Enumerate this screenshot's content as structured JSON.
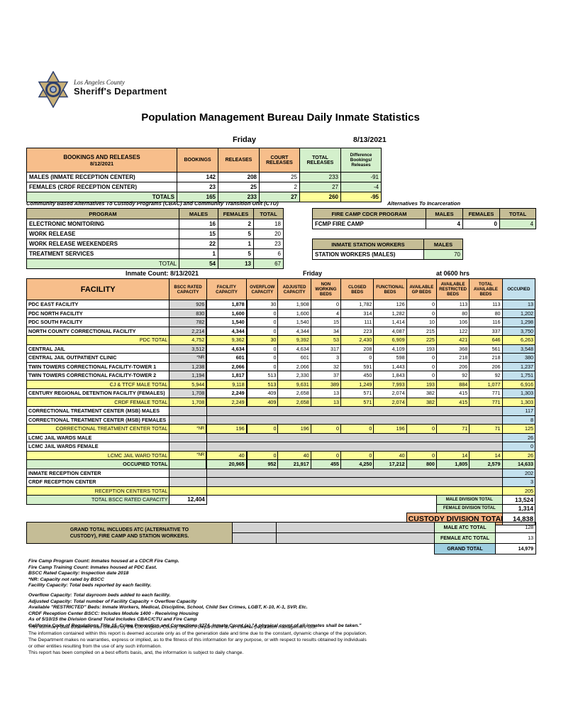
{
  "colors": {
    "header_orange": "#F7BE8B",
    "tan": "#C5BD96",
    "green": "#D4F0CC",
    "yellow": "#FFFF99",
    "occupied_blue": "#C3E0ED",
    "gray": "#D8D8D8",
    "grand_total_blue": "#9FCFE0",
    "custody_orange": "#F4B183"
  },
  "logo": {
    "county": "Los Angeles County",
    "department": "Sheriff's Department"
  },
  "header": {
    "title": "Population Management Bureau Daily Inmate Statistics",
    "day": "Friday",
    "date": "8/13/2021"
  },
  "bookings_table": {
    "title_line1": "BOOKINGS AND RELEASES",
    "title_line2": "8/12/2021",
    "columns": [
      "BOOKINGS",
      "RELEASES",
      "COURT RELEASES",
      "TOTAL RELEASES",
      "Difference Bookings/ Releases"
    ],
    "rows": [
      {
        "label": "MALES (INMATE RECEPTION CENTER)",
        "bookings": "142",
        "releases": "208",
        "court": "25",
        "total_releases": "233",
        "difference": "-91"
      },
      {
        "label": "FEMALES (CRDF RECEPTION CENTER)",
        "bookings": "23",
        "releases": "25",
        "court": "2",
        "total_releases": "27",
        "difference": "-4"
      }
    ],
    "totals": {
      "label": "TOTALS",
      "bookings": "165",
      "releases": "233",
      "court": "27",
      "total_releases": "260",
      "difference": "-95"
    }
  },
  "cbac_table": {
    "title": "Community Based Alternatives To Custody Programs (CBAC) and Community Transition Unit (CTU)",
    "columns": [
      "PROGRAM",
      "MALES",
      "FEMALES",
      "TOTAL"
    ],
    "rows": [
      {
        "label": "ELECTRONIC MONITORING",
        "males": "16",
        "females": "2",
        "total": "18"
      },
      {
        "label": "WORK RELEASE",
        "males": "15",
        "females": "5",
        "total": "20"
      },
      {
        "label": "WORK RELEASE WEEKENDERS",
        "males": "22",
        "females": "1",
        "total": "23"
      },
      {
        "label": "TREATMENT SERVICES",
        "males": "1",
        "females": "5",
        "total": "6"
      }
    ],
    "totals": {
      "label": "TOTAL",
      "males": "54",
      "females": "13",
      "total": "67"
    }
  },
  "ati": {
    "title": "Alternatives To Incarceration",
    "fire_camp": {
      "columns": [
        "FIRE CAMP CDCR PROGRAM",
        "MALES",
        "FEMALES",
        "TOTAL"
      ],
      "row": {
        "label": "FCMP FIRE CAMP",
        "males": "4",
        "females": "0",
        "total": "4"
      }
    },
    "station_workers": {
      "columns": [
        "INMATE STATION WORKERS",
        "MALES"
      ],
      "row": {
        "label": "STATION WORKERS (MALES)",
        "value": "70"
      }
    }
  },
  "facility_table": {
    "caption": "Inmate Count:  8/13/2021",
    "day": "Friday",
    "time": "at 0600 hrs",
    "columns": [
      "FACILITY",
      "BSCC RATED CAPACITY",
      "FACILITY CAPACITY",
      "OVERFLOW CAPACITY",
      "ADJUSTED CAPACITY",
      "NON WORKING BEDS",
      "CLOSED BEDS",
      "FUNCTIONAL BEDS",
      "AVAILABLE GP BEDS",
      "AVAILABLE RESTRICTED BEDS",
      "TOTAL AVAILABLE BEDS",
      "OCCUPIED"
    ],
    "rows": [
      {
        "style": "data",
        "label": "PDC EAST FACILITY",
        "bscc": "926",
        "cells": [
          "1,878",
          "30",
          "1,908",
          "0",
          "1,782",
          "126",
          "0",
          "113",
          "113"
        ],
        "occupied": "13"
      },
      {
        "style": "data",
        "label": "PDC NORTH FACILITY",
        "bscc": "830",
        "cells": [
          "1,600",
          "0",
          "1,600",
          "4",
          "314",
          "1,282",
          "0",
          "80",
          "80"
        ],
        "occupied": "1,202"
      },
      {
        "style": "data",
        "label": "PDC SOUTH FACILITY",
        "bscc": "782",
        "cells": [
          "1,540",
          "0",
          "1,540",
          "15",
          "111",
          "1,414",
          "10",
          "106",
          "116"
        ],
        "occupied": "1,298"
      },
      {
        "style": "data",
        "label": "NORTH COUNTY CORRECTIONAL FACILITY",
        "bscc": "2,214",
        "cells": [
          "4,344",
          "0",
          "4,344",
          "34",
          "223",
          "4,087",
          "215",
          "122",
          "337"
        ],
        "occupied": "3,750"
      },
      {
        "style": "total",
        "label": "PDC TOTAL",
        "bscc": "4,752",
        "cells": [
          "9,362",
          "30",
          "9,392",
          "53",
          "2,430",
          "6,909",
          "225",
          "421",
          "646"
        ],
        "occupied": "6,263"
      },
      {
        "style": "data",
        "label": "CENTRAL JAIL",
        "bscc": "3,512",
        "cells": [
          "4,634",
          "0",
          "4,634",
          "317",
          "208",
          "4,109",
          "193",
          "368",
          "561"
        ],
        "occupied": "3,548"
      },
      {
        "style": "data",
        "label": "CENTRAL JAIL OUTPATIENT CLINIC",
        "bscc": "*NR",
        "cells": [
          "601",
          "0",
          "601",
          "3",
          "0",
          "598",
          "0",
          "218",
          "218"
        ],
        "occupied": "380"
      },
      {
        "style": "data",
        "label": "TWIN TOWERS CORRECTIONAL FACILITY-TOWER 1",
        "bscc": "1,238",
        "cells": [
          "2,066",
          "0",
          "2,066",
          "32",
          "591",
          "1,443",
          "0",
          "206",
          "206"
        ],
        "occupied": "1,237"
      },
      {
        "style": "data",
        "label": "TWIN TOWERS CORRECTIONAL FACILITY-TOWER 2",
        "bscc": "1,194",
        "cells": [
          "1,817",
          "513",
          "2,330",
          "37",
          "450",
          "1,843",
          "0",
          "92",
          "92"
        ],
        "occupied": "1,751"
      },
      {
        "style": "total",
        "label": "CJ & TTCF MALE TOTAL",
        "bscc": "5,944",
        "cells": [
          "9,118",
          "513",
          "9,631",
          "389",
          "1,249",
          "7,993",
          "193",
          "884",
          "1,077"
        ],
        "occupied": "6,916"
      },
      {
        "style": "data",
        "label": "CENTURY REGIONAL DETENTION FACILITY (FEMALES)",
        "bscc": "1,708",
        "cells": [
          "2,249",
          "409",
          "2,658",
          "13",
          "571",
          "2,074",
          "382",
          "415",
          "771"
        ],
        "occupied": "1,303"
      },
      {
        "style": "total",
        "label": "CRDF FEMALE TOTAL",
        "bscc": "1,708",
        "cells": [
          "2,249",
          "409",
          "2,658",
          "13",
          "571",
          "2,074",
          "382",
          "415",
          "771"
        ],
        "occupied": "1,303"
      },
      {
        "style": "gray",
        "label": "CORRECTIONAL TREATMENT CENTER (MSB) MALES",
        "bscc": "",
        "cells": [],
        "occupied": "117"
      },
      {
        "style": "gray",
        "label": "CORRECTIONAL TREATMENT CENTER (MSB) FEMALES",
        "bscc": "",
        "cells": [],
        "occupied": "8"
      },
      {
        "style": "total",
        "label": "CORRECTIONAL TREATMENT CENTER  TOTAL",
        "bscc": "*NR",
        "cells": [
          "196",
          "0",
          "196",
          "0",
          "0",
          "196",
          "0",
          "71",
          "71"
        ],
        "occupied": "125"
      },
      {
        "style": "gray",
        "label": "LCMC JAIL WARDS MALE",
        "bscc": "",
        "cells": [],
        "occupied": "26"
      },
      {
        "style": "gray",
        "label": "LCMC JAIL WARDS FEMALE",
        "bscc": "",
        "cells": [],
        "occupied": "0"
      },
      {
        "style": "total",
        "label": "LCMC JAIL WARD TOTAL",
        "bscc": "*NR",
        "cells": [
          "40",
          "0",
          "40",
          "0",
          "0",
          "40",
          "0",
          "14",
          "14"
        ],
        "occupied": "26"
      },
      {
        "style": "occupied_total",
        "label": "OCCUPIED TOTAL",
        "bscc": "",
        "cells": [
          "20,965",
          "952",
          "21,917",
          "455",
          "4,250",
          "17,212",
          "800",
          "1,805",
          "2,579"
        ],
        "occupied": "14,633"
      },
      {
        "style": "gray",
        "label": "INMATE RECEPTION CENTER",
        "bscc": "",
        "cells": [],
        "occupied": "202"
      },
      {
        "style": "gray",
        "label": "CRDF RECEPTION CENTER",
        "bscc": "",
        "cells": [],
        "occupied": "3"
      },
      {
        "style": "reception_total",
        "label": "RECEPTION CENTERS TOTAL",
        "bscc": "",
        "cells": [],
        "occupied": "205"
      }
    ],
    "bottom": {
      "bscc_label": "TOTAL BSCC RATED CAPACITY",
      "bscc_value": "12,404",
      "male_div_label": "MALE DIVISION TOTAL",
      "male_div_value": "13,524",
      "female_div_label": "FEMALE DIVISION TOTAL",
      "female_div_value": "1,314",
      "custody_label": "CUSTODY DIVISION TOTAL",
      "custody_value": "14,838"
    }
  },
  "grand_total": {
    "label_line1": "GRAND TOTAL INCLUDES ATC (ALTERNATIVE TO",
    "label_line2": "CUSTODY), FIRE CAMP AND STATION WORKERS.",
    "male_atc_label": "MALE ATC TOTAL",
    "male_atc_value": "128",
    "female_atc_label": "FEMALE ATC TOTAL",
    "female_atc_value": "13",
    "grand_label": "GRAND TOTAL",
    "grand_value": "14,979"
  },
  "footnotes_group1": [
    "Fire Camp Program Count: Inmates housed at a CDCR Fire Camp.",
    "Fire Camp Training Count: Inmates housed at PDC East.",
    "BSCC Rated Capacity: Inspection date 2018",
    "*NR: Capacity not rated by BSCC",
    "Facility Capacity: Total beds reported by each facility."
  ],
  "footnotes_group2": [
    "Overflow Capacity: Total dayroom beds added to each facility.",
    "Adjusted Capacity: Total number of Facility Capacity + Overflow Capacity",
    "Available \"RESTRICTED\" Beds: Inmate Workers, Medical, Discipline, School, Child Sex Crimes,  LGBT, K-10, K-1, SVP, Etc.",
    "CRDF Reception Center BSCC: Includes Module 1400 - Receiving Housing",
    "As of 5/10/15 the Division Grand Total Includes CBAC/CTU and Fire Camp",
    "California Code of Regulations Title 15. Crime Prevention and Corrections 3274. Inmate Count (a) \"A physical count of all inmates shall be taken.\""
  ],
  "disclaimer": [
    "This summary data document was created by the Los Angeles County Sheriff's Department as an internal population management tool.",
    "The information contained within this report is deemed accurate only as of the generation date and time due to the constant, dynamic change of the population.",
    "The Department makes no warranties, express or implied, as to the fitness of this information for any purpose, or with respect to results obtained by individuals",
    "or other entities resulting from the use of any such information.",
    "This report has been compiled on a best efforts basis, and, the information is subject to daily change."
  ]
}
